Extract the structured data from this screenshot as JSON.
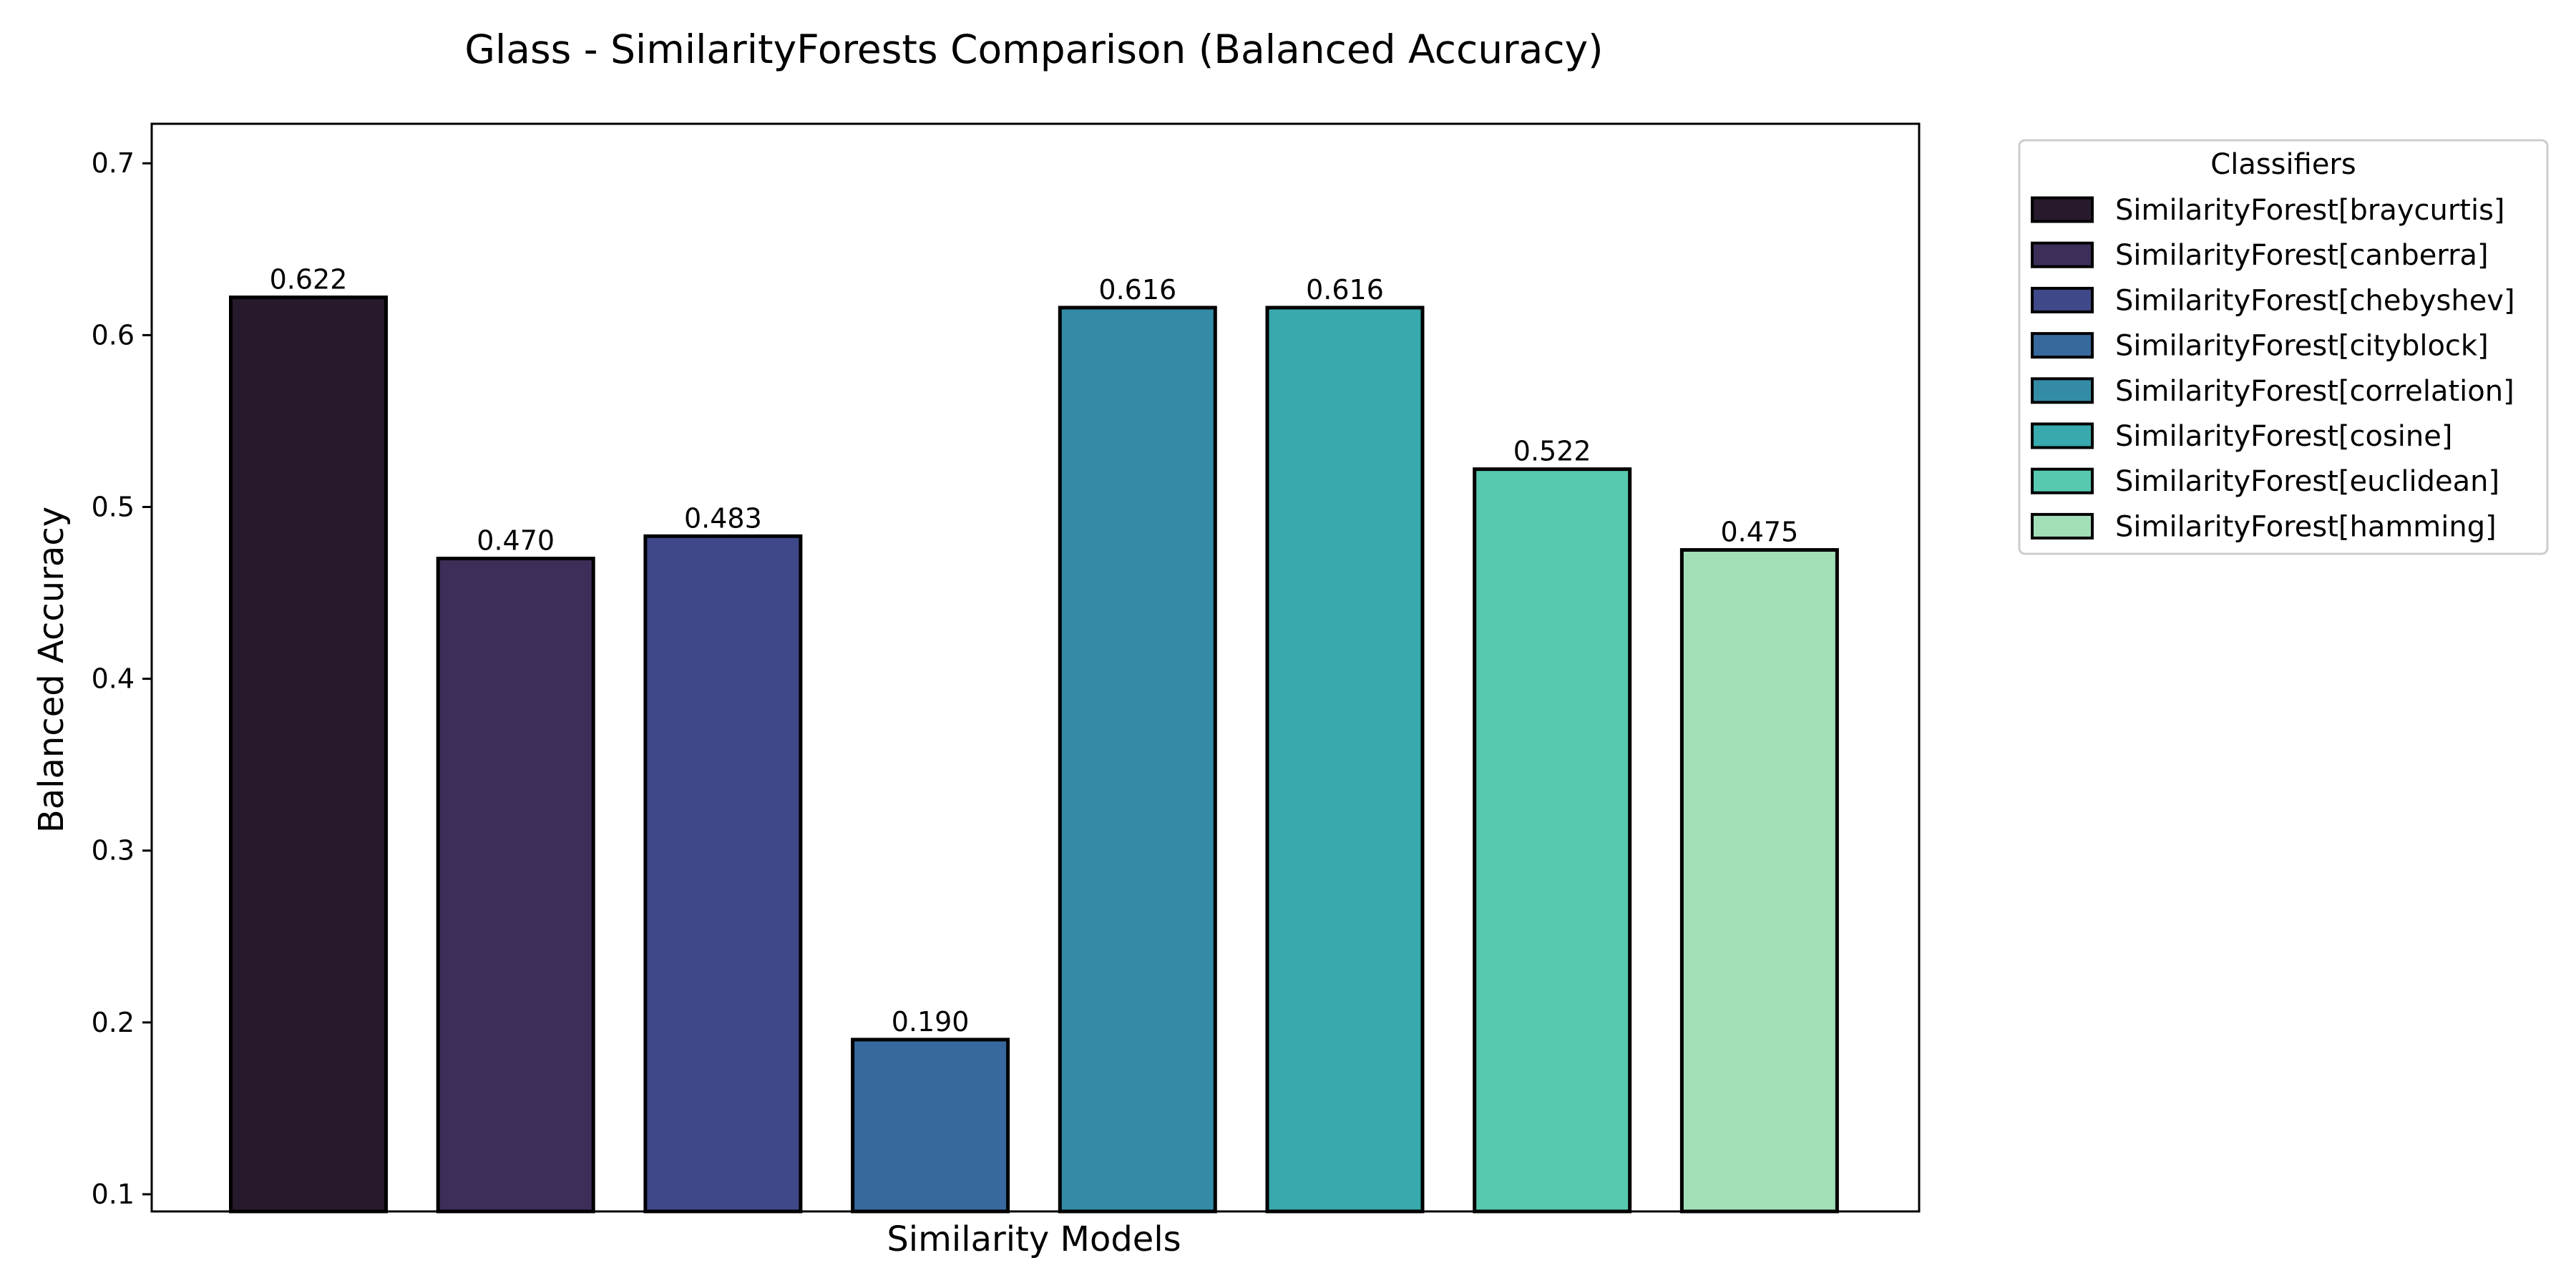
{
  "chart_data": {
    "type": "bar",
    "title": "Glass - SimilarityForests Comparison (Balanced Accuracy)",
    "xlabel": "Similarity Models",
    "ylabel": "Balanced Accuracy",
    "ylim": [
      0.09,
      0.723
    ],
    "yticks": [
      "0.1",
      "0.2",
      "0.3",
      "0.4",
      "0.5",
      "0.6",
      "0.7"
    ],
    "legend_title": "Classifiers",
    "legend_position": "outside-right-top",
    "grid": false,
    "categories": [
      "SimilarityForest[braycurtis]",
      "SimilarityForest[canberra]",
      "SimilarityForest[chebyshev]",
      "SimilarityForest[cityblock]",
      "SimilarityForest[correlation]",
      "SimilarityForest[cosine]",
      "SimilarityForest[euclidean]",
      "SimilarityForest[hamming]"
    ],
    "values": [
      0.622,
      0.47,
      0.483,
      0.19,
      0.616,
      0.616,
      0.522,
      0.475
    ],
    "value_labels": [
      "0.622",
      "0.470",
      "0.483",
      "0.190",
      "0.616",
      "0.616",
      "0.522",
      "0.475"
    ],
    "colors": [
      "#271a2c",
      "#3c2d59",
      "#3f4889",
      "#37699e",
      "#348ba6",
      "#38a9ac",
      "#56c9ae",
      "#a2dfb8"
    ]
  }
}
